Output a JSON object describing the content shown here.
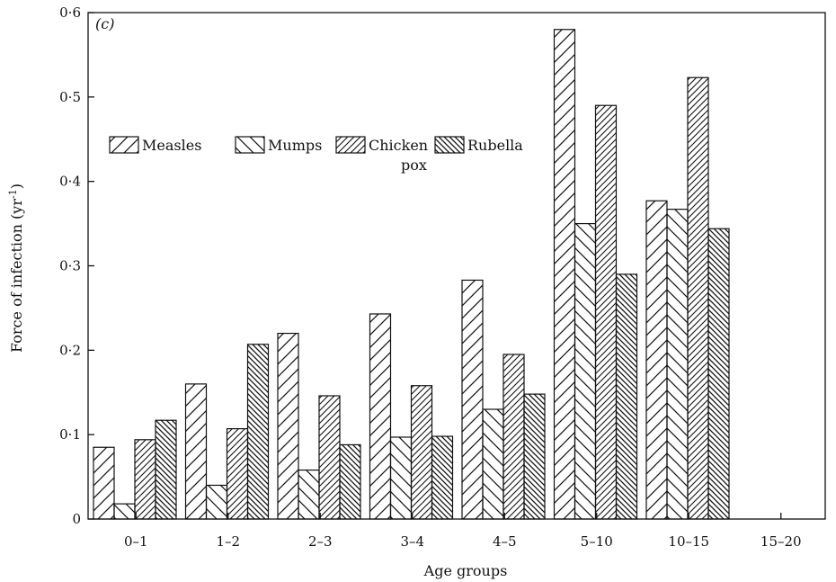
{
  "chart_data": {
    "type": "bar",
    "panel_label": "(c)",
    "xlabel": "Age groups",
    "ylabel": "Force of infection (yr",
    "ylabel_sup": "-1",
    "ylabel_close": ")",
    "ylim": [
      0,
      0.6
    ],
    "yticks": [
      0,
      0.1,
      0.2,
      0.3,
      0.4,
      0.5,
      0.6
    ],
    "ytick_labels": [
      "0",
      "0·1",
      "0·2",
      "0·3",
      "0·4",
      "0·5",
      "0·6"
    ],
    "categories": [
      "0–1",
      "1–2",
      "2–3",
      "3–4",
      "4–5",
      "5–10",
      "10–15",
      "15–20"
    ],
    "series": [
      {
        "name": "Measles",
        "pattern": "diag-up",
        "values": [
          0.085,
          0.16,
          0.22,
          0.243,
          0.283,
          0.58,
          0.377,
          null
        ]
      },
      {
        "name": "Mumps",
        "pattern": "diag-down",
        "values": [
          0.018,
          0.04,
          0.058,
          0.097,
          0.13,
          0.35,
          0.367,
          null
        ]
      },
      {
        "name": "Chicken pox",
        "legend_lines": [
          "Chicken",
          "pox"
        ],
        "pattern": "diag-up-dense",
        "values": [
          0.094,
          0.107,
          0.146,
          0.158,
          0.195,
          0.49,
          0.523,
          null
        ]
      },
      {
        "name": "Rubella",
        "pattern": "diag-down-dense",
        "values": [
          0.117,
          0.207,
          0.088,
          0.098,
          0.148,
          0.29,
          0.344,
          null
        ]
      }
    ],
    "legend_position": "upper-left",
    "grid": false
  }
}
